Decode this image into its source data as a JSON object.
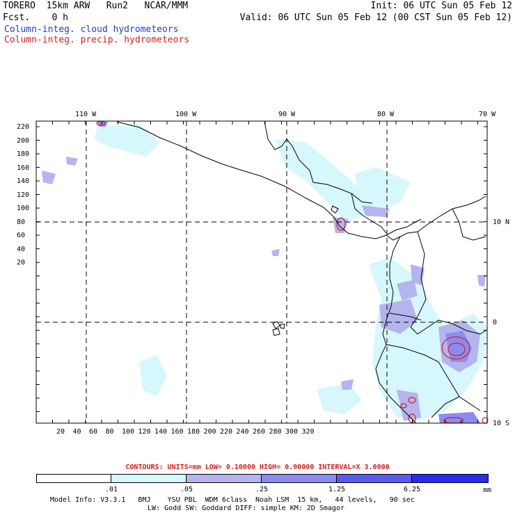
{
  "header": {
    "model_line": "TORERO  15km ARW   Run2   NCAR/MMM",
    "fcst_line": "Fcst.    0 h",
    "init": "Init: 06 UTC Sun 05 Feb 12",
    "valid": "Valid: 06 UTC Sun 05 Feb 12 (00 CST Sun 05 Feb 12)",
    "field1": "Column-integ. cloud hydrometeors",
    "field2": "Column-integ. precip. hydrometeors"
  },
  "colors": {
    "cloud_label": "#1f3fbf",
    "precip_label": "#d42020",
    "shade_1": "#d6f7fb",
    "shade_2": "#b4b4ef",
    "shade_3": "#8c8cf0",
    "shade_4": "#5a5af0",
    "shade_5": "#2a2af5",
    "contour": "#d42020"
  },
  "map": {
    "lon_labels": [
      "110 W",
      "100 W",
      "90 W",
      "80 W",
      "70 W"
    ],
    "lat_labels": [
      "10 N",
      "0",
      "10 S"
    ],
    "y_ticks": [
      "220",
      "200",
      "180",
      "160",
      "140",
      "120",
      "100",
      "80",
      "60",
      "40",
      "20"
    ],
    "x_ticks": [
      "20",
      "40",
      "60",
      "80",
      "100",
      "120",
      "140",
      "160",
      "180",
      "200",
      "220",
      "240",
      "260",
      "280",
      "300",
      "320"
    ]
  },
  "contour_info": "CONTOURS:  UNITS=mm  LOW= 0.10000      HIGH= 0.90000      INTERVAL=X  3.0000",
  "legend": {
    "labels": [
      ".01",
      ".05",
      ".25",
      "1.25",
      "6.25"
    ],
    "units": "mm"
  },
  "footer": {
    "line1": "Model Info: V3.3.1   BMJ    YSU PBL  WDM 6class  Noah LSM  15 km,   44 levels,   90 sec",
    "line2": "LW: Godd SW: Goddard DIFF: simple KM: 2D Smagor"
  }
}
